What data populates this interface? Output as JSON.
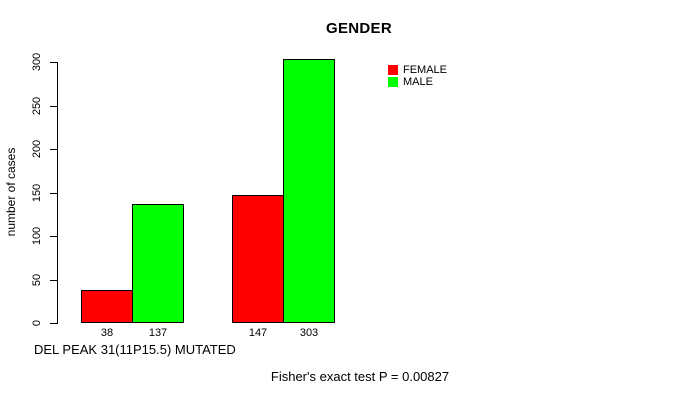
{
  "chart_data": {
    "type": "bar",
    "title": "GENDER",
    "ylabel": "number of cases",
    "xlabel": "DEL PEAK 31(11P15.5) MUTATED",
    "annotation": "Fisher's exact test P = 0.00827",
    "ylim": [
      0,
      300
    ],
    "yticks": [
      0,
      50,
      100,
      150,
      200,
      250,
      300
    ],
    "grid": false,
    "legend_position": "right",
    "categories": [
      "",
      ""
    ],
    "series": [
      {
        "name": "FEMALE",
        "color": "#ff0000",
        "values": [
          38,
          147
        ]
      },
      {
        "name": "MALE",
        "color": "#00ff00",
        "values": [
          137,
          303
        ]
      }
    ],
    "bar_value_labels": [
      "38",
      "137",
      "147",
      "303"
    ],
    "colors": {
      "axis": "#000000",
      "background": "#ffffff",
      "text": "#000000"
    }
  }
}
